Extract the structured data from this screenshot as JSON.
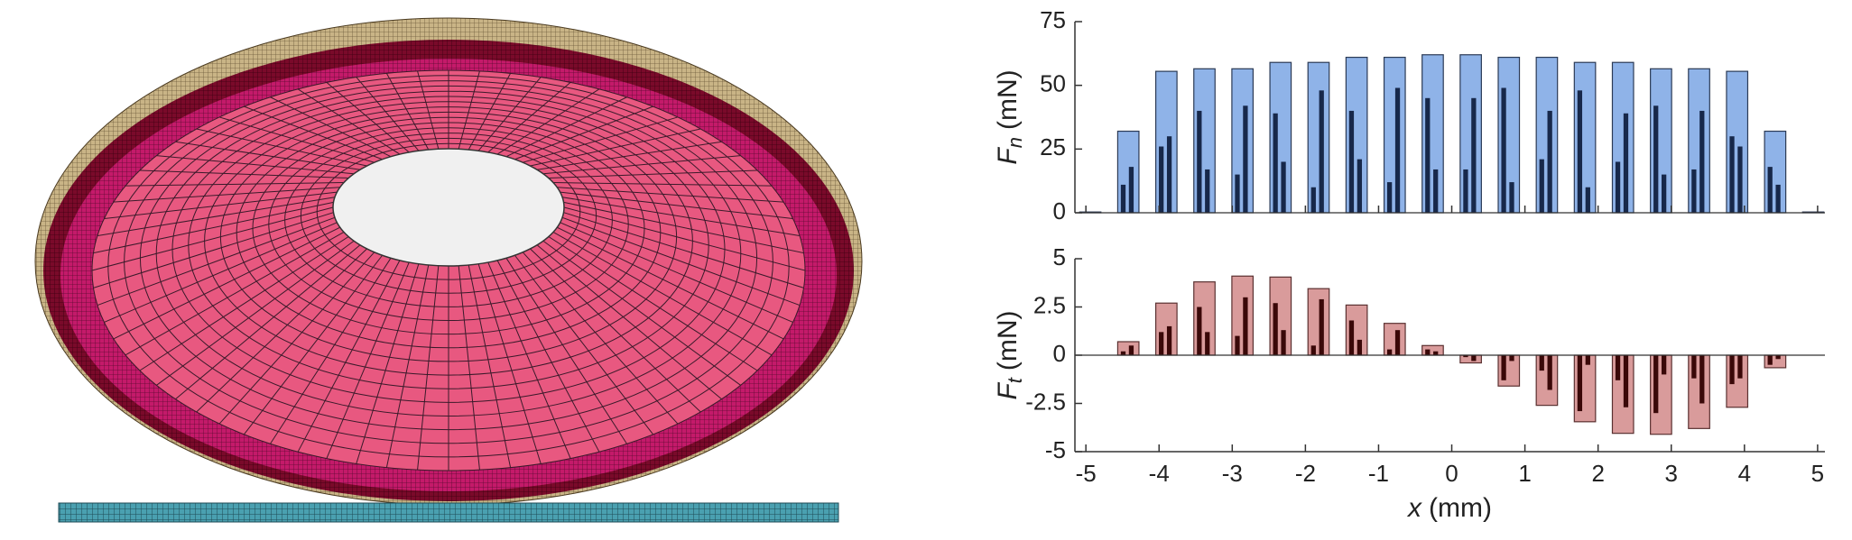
{
  "chart_data": [
    {
      "type": "bar",
      "ylabel": {
        "symbol": "F",
        "subscript": "n",
        "unit": "(mN)"
      },
      "x": [
        -4.94,
        -4.42,
        -3.9,
        -3.38,
        -2.86,
        -2.34,
        -1.82,
        -1.3,
        -0.78,
        -0.26,
        0.26,
        0.78,
        1.3,
        1.82,
        2.34,
        2.86,
        3.38,
        3.9,
        4.42,
        4.94
      ],
      "series": [
        {
          "color": "#8fb3e8",
          "edgecolor": "#2b3a55",
          "values": [
            0.3,
            32,
            55.5,
            56.5,
            56.5,
            59,
            59,
            61,
            61,
            62,
            62,
            61,
            61,
            59,
            59,
            56.5,
            56.5,
            55.5,
            32,
            0.3
          ]
        },
        {
          "color": "#17284a",
          "values": [
            0,
            11,
            26,
            40,
            15,
            39,
            10,
            40,
            12,
            45,
            17,
            49,
            21,
            48,
            20,
            42,
            17,
            30,
            18,
            0
          ]
        },
        {
          "color": "#17284a",
          "values": [
            0,
            18,
            30,
            17,
            42,
            20,
            48,
            21,
            49,
            17,
            45,
            12,
            40,
            10,
            39,
            15,
            40,
            26,
            11,
            0
          ]
        }
      ],
      "xlim": [
        -5.15,
        5.1
      ],
      "xticks": [
        -5,
        -4,
        -3,
        -2,
        -1,
        0,
        1,
        2,
        3,
        4,
        5
      ],
      "show_xticklabels": false,
      "ylim": [
        0,
        75
      ],
      "yticks": [
        0,
        25,
        50,
        75
      ]
    },
    {
      "type": "bar",
      "ylabel": {
        "symbol": "F",
        "subscript": "t",
        "unit": "(mN)"
      },
      "xlabel": {
        "symbol": "x",
        "unit": "(mm)"
      },
      "x": [
        -4.94,
        -4.42,
        -3.9,
        -3.38,
        -2.86,
        -2.34,
        -1.82,
        -1.3,
        -0.78,
        -0.26,
        0.26,
        0.78,
        1.3,
        1.82,
        2.34,
        2.86,
        3.38,
        3.9,
        4.42,
        4.94
      ],
      "series": [
        {
          "color": "#d99b9b",
          "edgecolor": "#5a3030",
          "values": [
            0,
            0.7,
            2.7,
            3.8,
            4.1,
            4.05,
            3.45,
            2.6,
            1.65,
            0.5,
            -0.4,
            -1.6,
            -2.6,
            -3.45,
            -4.05,
            -4.1,
            -3.8,
            -2.7,
            -0.65,
            0
          ]
        },
        {
          "color": "#3a0808",
          "values": [
            0,
            0.2,
            1.2,
            2.5,
            1.0,
            2.7,
            0.5,
            1.8,
            0.3,
            0.3,
            -0.1,
            -1.3,
            -0.8,
            -2.9,
            -1.3,
            -3.0,
            -1.2,
            -1.5,
            -0.5,
            0
          ]
        },
        {
          "color": "#3a0808",
          "values": [
            0,
            0.5,
            1.5,
            1.2,
            3.0,
            1.3,
            2.9,
            0.8,
            1.3,
            0.2,
            -0.3,
            -0.3,
            -1.8,
            -0.5,
            -2.7,
            -1.0,
            -2.5,
            -1.2,
            -0.2,
            0
          ]
        }
      ],
      "xlim": [
        -5.15,
        5.1
      ],
      "xticks": [
        -5,
        -4,
        -3,
        -2,
        -1,
        0,
        1,
        2,
        3,
        4,
        5
      ],
      "show_xticklabels": true,
      "ylim": [
        -5,
        5
      ],
      "yticks": [
        -5,
        -2.5,
        0,
        2.5,
        5
      ]
    }
  ]
}
